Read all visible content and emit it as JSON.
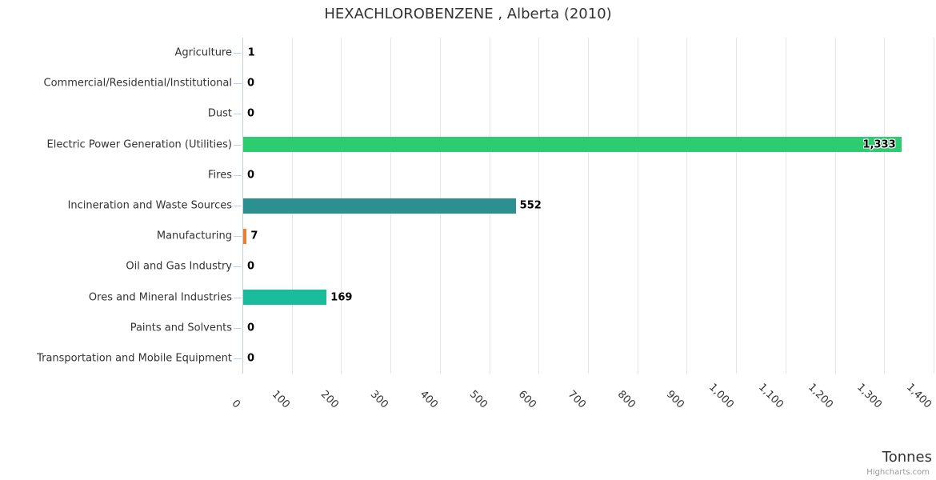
{
  "credits": "Highcharts.com",
  "chart_data": {
    "type": "bar",
    "orientation": "horizontal",
    "title": "HEXACHLOROBENZENE , Alberta (2010)",
    "xlabel": "Tonnes",
    "xlim": [
      0,
      1400
    ],
    "tick_interval": 100,
    "grid": true,
    "x_ticks": [
      "0",
      "100",
      "200",
      "300",
      "400",
      "500",
      "600",
      "700",
      "800",
      "900",
      "1,000",
      "1,100",
      "1,200",
      "1,300",
      "1,400"
    ],
    "categories": [
      "Agriculture",
      "Commercial/Residential/Institutional",
      "Dust",
      "Electric Power Generation (Utilities)",
      "Fires",
      "Incineration and Waste Sources",
      "Manufacturing",
      "Oil and Gas Industry",
      "Ores and Mineral Industries",
      "Paints and Solvents",
      "Transportation and Mobile Equipment"
    ],
    "values": [
      1,
      0,
      0,
      1333,
      0,
      552,
      7,
      0,
      169,
      0,
      0
    ],
    "value_labels": [
      "1",
      "0",
      "0",
      "1,333",
      "0",
      "552",
      "7",
      "0",
      "169",
      "0",
      "0"
    ],
    "bar_colors": [
      null,
      null,
      null,
      "#2ecc71",
      null,
      "#2b908f",
      "#ed7d31",
      null,
      "#1abc9c",
      null,
      null
    ],
    "colors": {
      "grid_line": "#e6e6e6",
      "axis_line": "#c0d0e0",
      "label_text": "#333333",
      "data_label_text": "#000000",
      "credits_text": "#999999"
    }
  }
}
